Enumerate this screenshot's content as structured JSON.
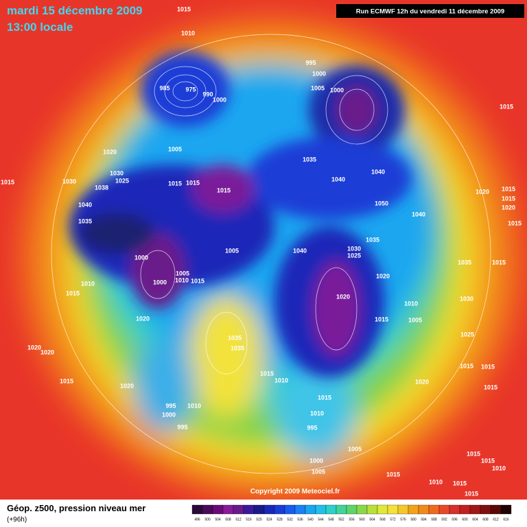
{
  "header": {
    "date": "mardi 15 décembre 2009",
    "time": "13:00 locale",
    "run": "Run ECMWF 12h du vendredi 11 décembre 2009"
  },
  "footer": {
    "field": "Géop. z500, pression niveau mer",
    "lead": "(+96h)",
    "copyright": "Copyright 2009 Meteociel.fr"
  },
  "colorbar": {
    "labels": [
      496,
      500,
      504,
      508,
      512,
      516,
      520,
      524,
      528,
      532,
      536,
      540,
      544,
      548,
      552,
      556,
      560,
      564,
      568,
      572,
      576,
      580,
      584,
      588,
      592,
      596,
      600,
      604,
      608,
      612,
      616
    ]
  },
  "pressure_labels": [
    1015,
    1010,
    995,
    1000,
    1005,
    1000,
    985,
    975,
    990,
    1000,
    1015,
    1020,
    1005,
    1035,
    1030,
    1025,
    1030,
    1015,
    1015,
    1015,
    1015,
    1040,
    1040,
    1038,
    1040,
    1050,
    1020,
    1015,
    1015,
    1020,
    1040,
    1035,
    1015,
    1035,
    1030,
    1025,
    1005,
    1040,
    1000,
    1035,
    1015,
    1005,
    1010,
    1015,
    1000,
    1010,
    1015,
    1020,
    1020,
    1030,
    1010,
    1020,
    1015,
    1005,
    1025,
    1035,
    1035,
    1020,
    1020,
    1015,
    1015,
    1015,
    1010,
    1020,
    1015,
    1020,
    1015,
    1015,
    995,
    1000,
    1010,
    1010,
    995,
    995,
    1005,
    1015,
    1000,
    1015,
    1010,
    1005,
    1015,
    1010,
    1015,
    1015
  ]
}
